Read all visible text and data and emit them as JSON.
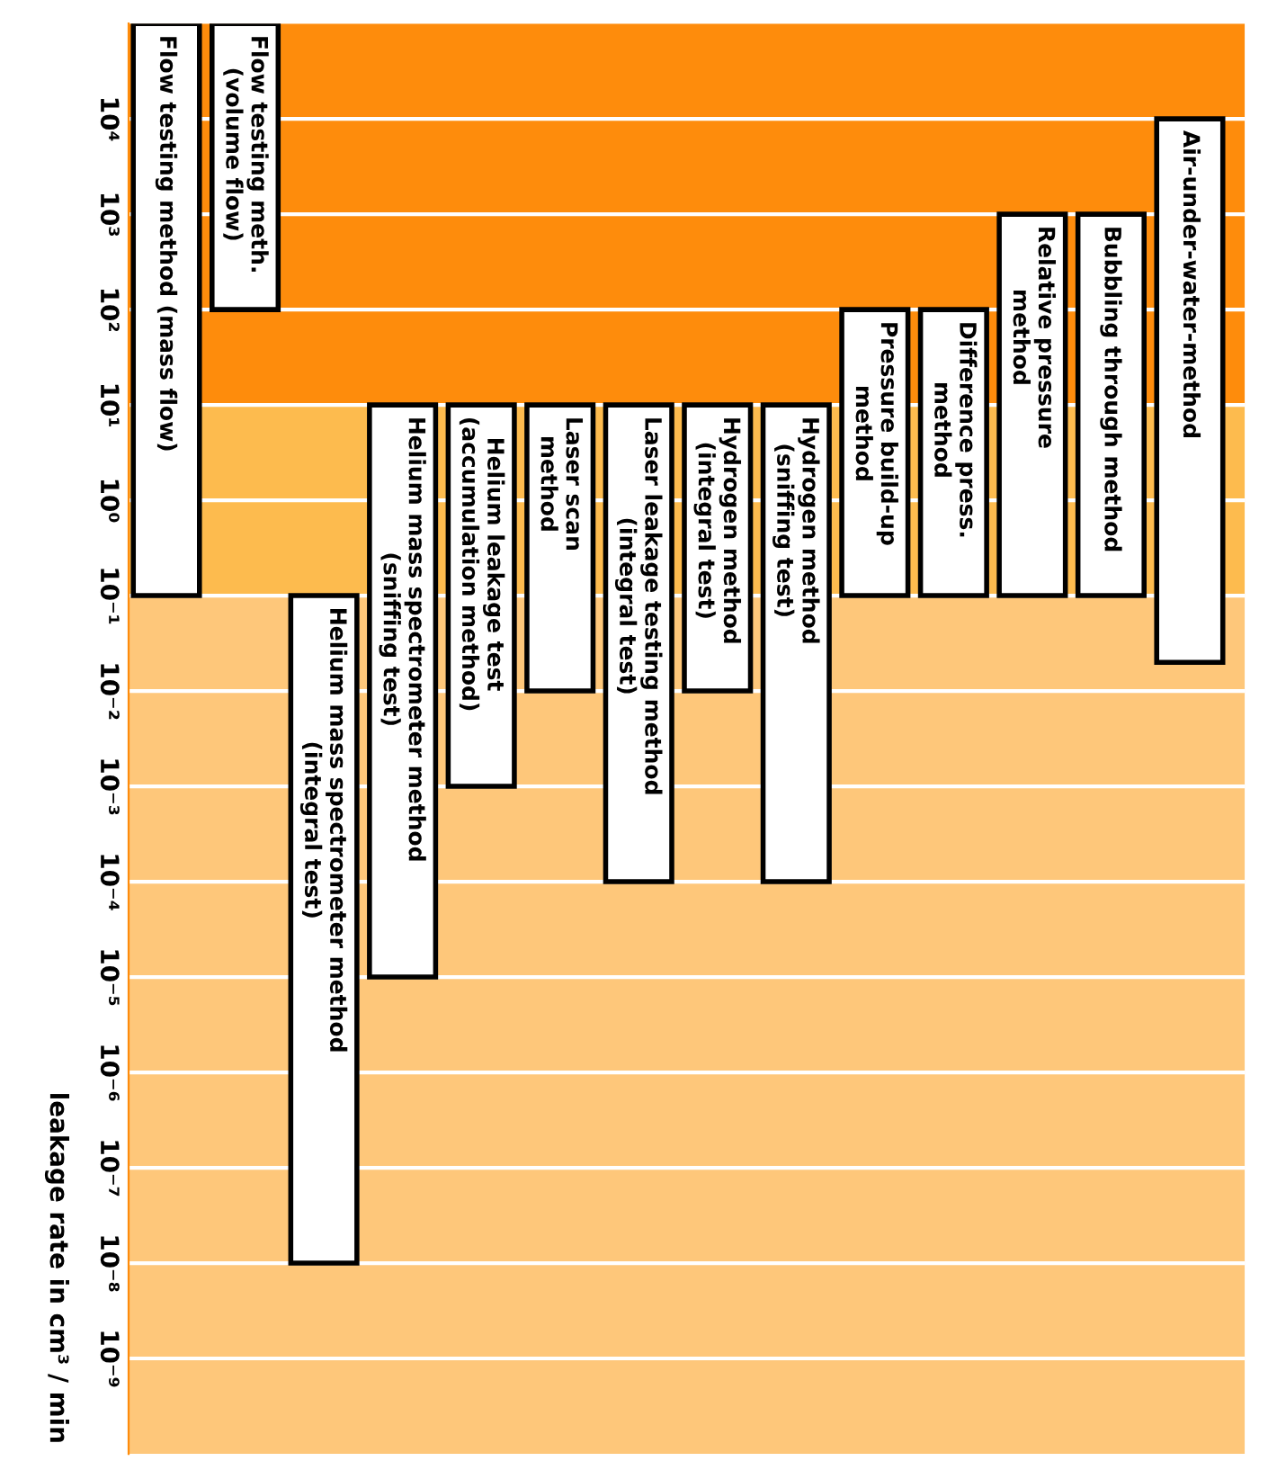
{
  "chart_data": {
    "type": "bar",
    "ylabel": "leakage rate in cm³ / min",
    "categories": [
      "Flow testing method (mass flow)",
      "Flow testing meth.\n(volume flow)",
      "Helium mass spectrometer method\n(integral test)",
      "Helium mass spectrometer method\n(sniffing test)",
      "Helium leakage test\n(accumulation method)",
      "Laser scan\nmethod",
      "Laser leakage testing method\n(integral test)",
      "Hydrogen method\n(integral test)",
      "Hydrogen method\n(sniffing test)",
      "Pressure build-up\nmethod",
      "Difference press.\nmethod",
      "Relative pressure\nmethod",
      "Bubbling through method",
      "Air-under-water-method"
    ],
    "base": [
      0.1,
      100,
      1e-08,
      1e-05,
      0.001,
      0.01,
      0.0001,
      0.01,
      0.0001,
      0.1,
      0.1,
      0.1,
      0.1,
      0.02
    ],
    "values": [
      99999.9,
      99900,
      0.09999999,
      9.99999,
      9.999,
      9.99,
      9.9999,
      9.99,
      9.9999,
      99.9,
      99.9,
      999.9,
      999.9,
      9999.98
    ],
    "color": "#ffffff",
    "log": "y",
    "ylim": [
      1e-10,
      100000
    ],
    "yticks": [
      {
        "value": 10000,
        "label": "10⁴"
      },
      {
        "value": 1000,
        "label": "10³"
      },
      {
        "value": 100,
        "label": "10²"
      },
      {
        "value": 10,
        "label": "10¹"
      },
      {
        "value": 1,
        "label": "10⁰"
      },
      {
        "value": 0.1,
        "label": "10⁻¹"
      },
      {
        "value": 0.01,
        "label": "10⁻²"
      },
      {
        "value": 0.001,
        "label": "10⁻³"
      },
      {
        "value": 0.0001,
        "label": "10⁻⁴"
      },
      {
        "value": 1e-05,
        "label": "10⁻⁵"
      },
      {
        "value": 1e-06,
        "label": "10⁻⁶"
      },
      {
        "value": 1e-07,
        "label": "10⁻⁷"
      },
      {
        "value": 1e-08,
        "label": "10⁻⁸"
      },
      {
        "value": 1e-09,
        "label": "10⁻⁹"
      }
    ],
    "bands": [
      {
        "axis": "y",
        "from": 10,
        "to": 100000,
        "color": "#fe8c0c"
      },
      {
        "axis": "y",
        "from": 0.1,
        "to": 10,
        "color": "#fdbb4e"
      },
      {
        "axis": "y",
        "from": 1e-10,
        "to": 0.1,
        "color": "#fec77a"
      }
    ],
    "grid": "y",
    "tick_labels": "y"
  }
}
